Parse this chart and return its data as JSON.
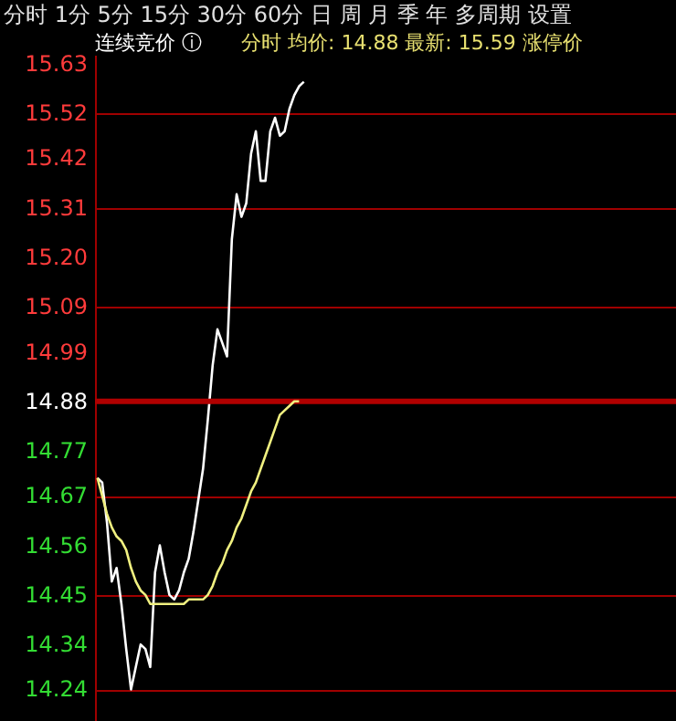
{
  "chart_data": {
    "type": "line",
    "title": "分时 均价: 14.88 最新: 15.59 涨停价",
    "annotations": [
      "分时  1分  5分  15分  30分  60分  日  周  月  季  年  多周期  设置",
      "连续竞价 ⓘ"
    ],
    "categories": [
      null,
      null,
      null,
      null,
      null,
      null,
      null,
      null,
      null,
      null,
      null,
      null,
      null,
      null,
      null,
      null,
      null,
      null,
      null,
      null,
      null,
      null,
      null,
      null,
      null,
      null,
      null,
      null,
      null,
      null,
      null,
      null,
      null,
      null,
      null,
      null,
      null,
      null,
      null,
      null,
      null,
      null,
      null,
      null,
      null,
      null,
      null,
      null,
      null,
      null,
      null,
      null,
      null,
      null,
      null,
      null,
      null,
      null,
      null,
      null,
      null,
      null,
      null,
      null,
      null,
      null,
      null,
      null,
      null,
      null,
      null,
      null,
      null,
      null,
      null,
      null,
      null,
      null,
      null,
      null,
      null,
      null,
      null,
      null,
      null,
      null,
      null,
      null,
      null,
      null,
      null,
      null,
      null,
      null,
      null,
      null,
      null,
      null,
      null,
      null,
      null,
      null,
      null,
      null,
      null,
      null,
      null,
      null,
      null,
      null,
      null,
      null,
      null,
      null,
      null,
      null,
      null,
      null,
      null,
      null,
      null
    ],
    "ylim": [
      14.17,
      15.65
    ],
    "yticks": [
      15.63,
      15.52,
      15.42,
      15.31,
      {
        "value": 15.2,
        "label": "15.20"
      },
      15.09,
      14.99,
      14.88,
      14.77,
      14.67,
      14.56,
      14.45,
      14.34,
      14.24
    ],
    "tick_labels": "y",
    "grid": "y",
    "line_style": "solid",
    "ref_lines": [
      {
        "axis": "y",
        "value": 14.88,
        "color": "#b00000"
      }
    ],
    "series": [
      {
        "color": "#ffffff",
        "values": [
          14.71,
          14.7,
          14.61,
          14.48,
          14.51,
          14.43,
          14.33,
          14.24,
          14.29,
          14.34,
          14.33,
          14.29,
          14.5,
          14.56,
          14.5,
          14.45,
          14.44,
          14.46,
          14.5,
          14.53,
          14.59,
          14.66,
          14.73,
          14.84,
          14.96,
          15.04,
          15.01,
          14.98,
          15.24,
          15.34,
          15.29,
          15.32,
          15.43,
          15.48,
          15.37,
          15.37,
          15.48,
          15.51,
          15.47,
          15.48,
          15.53,
          15.56,
          15.58,
          15.59,
          null,
          null,
          null,
          null,
          null,
          null,
          null,
          null,
          null,
          null,
          null,
          null,
          null,
          null,
          null,
          null,
          null,
          null,
          null,
          null,
          null,
          null,
          null,
          null,
          null,
          null,
          null,
          null,
          null,
          null,
          null,
          null,
          null,
          null,
          null,
          null,
          null,
          null,
          null,
          null,
          null,
          null,
          null,
          null,
          null,
          null,
          null,
          null,
          null,
          null,
          null,
          null,
          null,
          null,
          null,
          null,
          null,
          null,
          null,
          null,
          null,
          null,
          null,
          null,
          null,
          null,
          null,
          null,
          null,
          null,
          null,
          null,
          null,
          null,
          null,
          null,
          null
        ]
      },
      {
        "color": "#f0f080",
        "values": [
          14.71,
          14.67,
          14.63,
          14.6,
          14.58,
          14.57,
          14.55,
          14.51,
          14.48,
          14.46,
          14.45,
          14.43,
          14.43,
          14.43,
          14.43,
          14.43,
          14.43,
          14.43,
          14.43,
          14.44,
          14.44,
          14.44,
          14.44,
          14.45,
          14.47,
          14.5,
          14.52,
          14.55,
          14.57,
          14.6,
          14.62,
          14.65,
          14.68,
          14.7,
          14.73,
          14.76,
          14.79,
          14.82,
          14.85,
          14.86,
          14.87,
          14.88,
          14.88,
          null,
          null,
          null,
          null,
          null,
          null,
          null,
          null,
          null,
          null,
          null,
          null,
          null,
          null,
          null,
          null,
          null,
          null,
          null,
          null,
          null,
          null,
          null,
          null,
          null,
          null,
          null,
          null,
          null,
          null,
          null,
          null,
          null,
          null,
          null,
          null,
          null,
          null,
          null,
          null,
          null,
          null,
          null,
          null,
          null,
          null,
          null,
          null,
          null,
          null,
          null,
          null,
          null,
          null,
          null,
          null,
          null,
          null,
          null,
          null,
          null,
          null,
          null,
          null,
          null,
          null,
          null,
          null,
          null,
          null,
          null,
          null,
          null,
          null,
          null,
          null,
          null,
          null
        ]
      }
    ]
  }
}
